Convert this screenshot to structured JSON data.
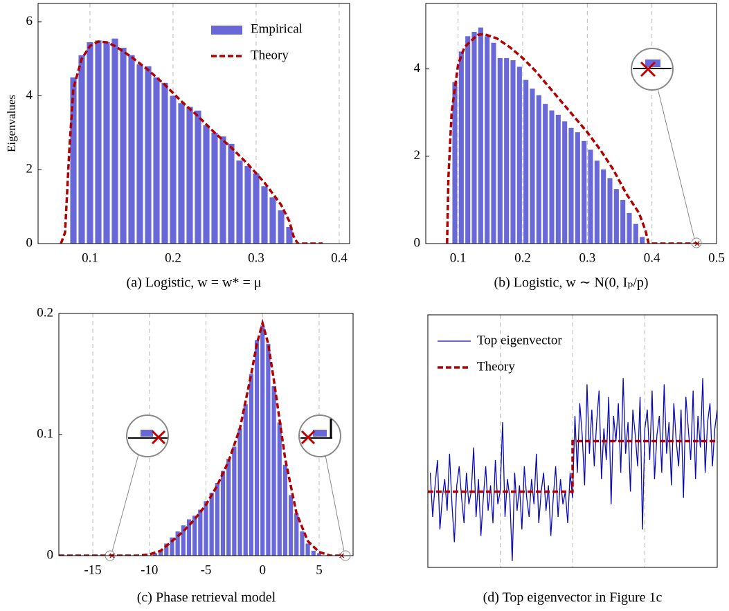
{
  "chart_data": [
    {
      "type": "histogram",
      "caption": "(a)  Logistic, w = w* = μ",
      "ylabel": "Eigenvalues",
      "xlim": [
        0.0375,
        0.4125
      ],
      "ylim": [
        0,
        6.5
      ],
      "xticks": [
        0.1,
        0.2,
        0.3,
        0.4
      ],
      "yticks": [
        0,
        2,
        4,
        6
      ],
      "grid": "x",
      "legend": "upper right",
      "series": [
        {
          "name": "Empirical",
          "kind": "histogram",
          "color": "#6868d8",
          "bins": [
            0.075,
            0.085,
            0.095,
            0.105,
            0.115,
            0.125,
            0.135,
            0.145,
            0.155,
            0.165,
            0.175,
            0.185,
            0.195,
            0.205,
            0.215,
            0.225,
            0.235,
            0.245,
            0.255,
            0.265,
            0.275,
            0.285,
            0.295,
            0.305,
            0.315,
            0.325,
            0.335,
            0.345
          ],
          "values": [
            4.5,
            5.1,
            5.45,
            5.5,
            5.45,
            5.55,
            5.3,
            5.1,
            4.85,
            4.8,
            4.5,
            4.35,
            4.0,
            3.8,
            3.7,
            3.6,
            3.2,
            3.0,
            2.9,
            2.7,
            2.25,
            2.1,
            1.9,
            1.55,
            1.25,
            0.9,
            0.45
          ]
        },
        {
          "name": "Theory",
          "kind": "line",
          "dash": true,
          "color": "#b00000",
          "x": [
            0.065,
            0.07,
            0.075,
            0.08,
            0.09,
            0.1,
            0.11,
            0.12,
            0.13,
            0.15,
            0.17,
            0.19,
            0.21,
            0.23,
            0.25,
            0.27,
            0.29,
            0.31,
            0.33,
            0.34,
            0.345,
            0.35,
            0.38
          ],
          "values": [
            0,
            0.3,
            2.5,
            4.2,
            5.0,
            5.35,
            5.47,
            5.45,
            5.35,
            5.05,
            4.7,
            4.3,
            3.85,
            3.45,
            3.0,
            2.6,
            2.15,
            1.65,
            1.05,
            0.6,
            0.2,
            0,
            0
          ]
        }
      ]
    },
    {
      "type": "histogram",
      "caption": "(b)  Logistic, w ∼ N(0, Iₚ/p)",
      "xlim": [
        0.05,
        0.5
      ],
      "ylim": [
        0,
        5.5
      ],
      "xticks": [
        0.1,
        0.2,
        0.3,
        0.4,
        0.5
      ],
      "yticks": [
        0,
        2,
        4
      ],
      "grid": "x",
      "series": [
        {
          "kind": "histogram",
          "color": "#6868d8",
          "bins": [
            0.09,
            0.1,
            0.11,
            0.12,
            0.13,
            0.14,
            0.15,
            0.16,
            0.17,
            0.18,
            0.19,
            0.2,
            0.21,
            0.22,
            0.23,
            0.24,
            0.25,
            0.26,
            0.27,
            0.28,
            0.29,
            0.3,
            0.31,
            0.32,
            0.33,
            0.34,
            0.35,
            0.36,
            0.37,
            0.38,
            0.39
          ],
          "values": [
            3.7,
            4.4,
            4.75,
            4.85,
            4.95,
            4.75,
            4.6,
            4.25,
            4.25,
            4.2,
            4.05,
            3.75,
            3.55,
            3.4,
            3.2,
            3.05,
            2.95,
            2.8,
            2.65,
            2.55,
            2.35,
            2.15,
            1.9,
            1.7,
            1.5,
            1.25,
            1.0,
            0.7,
            0.45,
            0.15
          ]
        },
        {
          "kind": "line",
          "dash": true,
          "color": "#b00000",
          "x": [
            0.083,
            0.085,
            0.09,
            0.1,
            0.11,
            0.13,
            0.14,
            0.16,
            0.18,
            0.2,
            0.22,
            0.24,
            0.26,
            0.28,
            0.3,
            0.32,
            0.34,
            0.36,
            0.38,
            0.39,
            0.395,
            0.47
          ],
          "values": [
            0,
            1.5,
            3.0,
            4.1,
            4.5,
            4.78,
            4.8,
            4.7,
            4.5,
            4.25,
            3.95,
            3.6,
            3.25,
            2.9,
            2.55,
            2.15,
            1.7,
            1.15,
            0.7,
            0.3,
            0,
            0
          ]
        },
        {
          "kind": "scatter",
          "color": "#c00000",
          "x": [
            0.47
          ],
          "values": [
            0
          ]
        }
      ]
    },
    {
      "type": "histogram",
      "caption": "(c)  Phase retrieval model",
      "xlim": [
        -18,
        8
      ],
      "ylim": [
        0,
        0.2
      ],
      "xticks": [
        -15,
        -10,
        -5,
        0,
        5
      ],
      "yticks": [
        0,
        0.1,
        0.2
      ],
      "grid": "x",
      "series": [
        {
          "kind": "histogram",
          "color": "#6868d8",
          "bins": [
            -9.75,
            -9.25,
            -8.75,
            -8.25,
            -7.75,
            -7.25,
            -6.75,
            -6.25,
            -5.75,
            -5.25,
            -4.75,
            -4.25,
            -3.75,
            -3.25,
            -2.75,
            -2.25,
            -1.75,
            -1.25,
            -0.75,
            -0.25,
            0.25,
            0.75,
            1.25,
            1.75,
            2.25,
            2.75,
            3.25,
            3.75,
            4.25,
            4.75,
            5.25
          ],
          "values": [
            0.002,
            0.004,
            0.01,
            0.015,
            0.02,
            0.025,
            0.03,
            0.033,
            0.038,
            0.045,
            0.052,
            0.06,
            0.07,
            0.08,
            0.09,
            0.105,
            0.125,
            0.15,
            0.178,
            0.19,
            0.175,
            0.14,
            0.11,
            0.075,
            0.05,
            0.035,
            0.02,
            0.01,
            0.004,
            0.002
          ]
        },
        {
          "kind": "line",
          "dash": true,
          "color": "#b00000",
          "x": [
            -18,
            -11,
            -10,
            -9,
            -8,
            -7,
            -6,
            -5,
            -4,
            -3,
            -2,
            -1,
            -0.5,
            0,
            0.5,
            1,
            2,
            3,
            4,
            5,
            6,
            7
          ],
          "values": [
            0,
            0,
            0.001,
            0.004,
            0.012,
            0.02,
            0.03,
            0.042,
            0.058,
            0.078,
            0.105,
            0.15,
            0.175,
            0.192,
            0.175,
            0.145,
            0.08,
            0.035,
            0.012,
            0.003,
            0,
            0
          ]
        },
        {
          "kind": "scatter",
          "color": "#c00000",
          "x": [
            -13.3,
            7
          ],
          "values": [
            0,
            0
          ]
        }
      ]
    },
    {
      "type": "line",
      "caption": "(d)  Top eigenvector in Figure 1c",
      "xlim": [
        0,
        120
      ],
      "ylim": [
        -0.2,
        0.2
      ],
      "xgrid": [
        30,
        60,
        90
      ],
      "grid": "x",
      "legend": "upper left",
      "series": [
        {
          "name": "Top eigenvector",
          "kind": "line",
          "color": "#0a0ab0",
          "x": [
            1,
            2,
            3,
            4,
            5,
            6,
            7,
            8,
            9,
            10,
            11,
            12,
            13,
            14,
            15,
            16,
            17,
            18,
            19,
            20,
            21,
            22,
            23,
            24,
            25,
            26,
            27,
            28,
            29,
            30,
            31,
            32,
            33,
            34,
            35,
            36,
            37,
            38,
            39,
            40,
            41,
            42,
            43,
            44,
            45,
            46,
            47,
            48,
            49,
            50,
            51,
            52,
            53,
            54,
            55,
            56,
            57,
            58,
            59,
            60,
            61,
            62,
            63,
            64,
            65,
            66,
            67,
            68,
            69,
            70,
            71,
            72,
            73,
            74,
            75,
            76,
            77,
            78,
            79,
            80,
            81,
            82,
            83,
            84,
            85,
            86,
            87,
            88,
            89,
            90,
            91,
            92,
            93,
            94,
            95,
            96,
            97,
            98,
            99,
            100,
            101,
            102,
            103,
            104,
            105,
            106,
            107,
            108,
            109,
            110,
            111,
            112,
            113,
            114,
            115,
            116,
            117,
            118,
            119,
            120
          ],
          "values": [
            -0.05,
            -0.12,
            -0.07,
            -0.03,
            -0.14,
            -0.09,
            -0.06,
            -0.11,
            -0.02,
            -0.1,
            -0.16,
            -0.07,
            -0.04,
            -0.09,
            -0.13,
            -0.05,
            -0.1,
            -0.08,
            -0.01,
            -0.12,
            -0.06,
            -0.15,
            -0.09,
            -0.04,
            -0.11,
            -0.07,
            -0.13,
            -0.03,
            -0.1,
            -0.08,
            0.03,
            -0.12,
            -0.06,
            -0.09,
            -0.19,
            -0.05,
            -0.11,
            -0.07,
            -0.14,
            -0.04,
            -0.09,
            -0.12,
            -0.06,
            -0.1,
            -0.02,
            -0.13,
            -0.08,
            -0.05,
            -0.11,
            -0.07,
            -0.15,
            -0.09,
            -0.04,
            -0.12,
            -0.06,
            -0.1,
            -0.08,
            -0.13,
            -0.05,
            -0.09,
            0.04,
            -0.05,
            0.06,
            0.01,
            -0.07,
            0.09,
            -0.02,
            0.05,
            -0.04,
            0.03,
            0.08,
            -0.06,
            0.02,
            -0.03,
            0.07,
            -0.1,
            0.04,
            0.0,
            0.06,
            -0.05,
            0.1,
            -0.02,
            0.03,
            -0.08,
            0.05,
            0.01,
            -0.04,
            0.07,
            -0.14,
            0.02,
            0.05,
            -0.03,
            0.08,
            -0.06,
            0.01,
            0.04,
            -0.05,
            0.09,
            -0.02,
            0.03,
            -0.07,
            0.06,
            0.0,
            -0.04,
            0.05,
            -0.09,
            0.07,
            0.02,
            -0.03,
            0.08,
            -0.06,
            0.04,
            -0.01,
            0.1,
            -0.05,
            0.03,
            0.06,
            -0.04,
            0.02,
            0.05
          ]
        },
        {
          "name": "Theory",
          "kind": "line",
          "dash": true,
          "color": "#b00000",
          "x": [
            0,
            60,
            60,
            120
          ],
          "values": [
            -0.08,
            -0.08,
            0,
            0
          ]
        }
      ]
    }
  ]
}
